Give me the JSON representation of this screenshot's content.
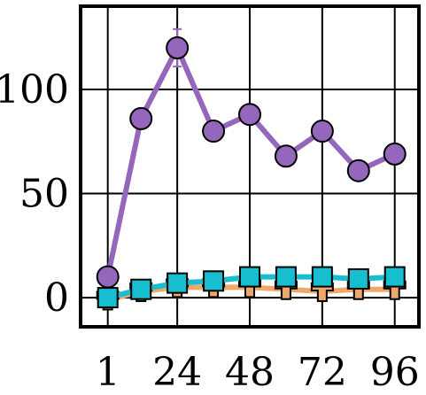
{
  "chart_data": {
    "type": "line",
    "title": "",
    "xlabel": "",
    "ylabel": "",
    "x": [
      1,
      12,
      24,
      36,
      48,
      60,
      72,
      84,
      96
    ],
    "xticks": [
      1,
      24,
      48,
      72,
      96
    ],
    "yticks": [
      0,
      50,
      100
    ],
    "xlim": [
      -8,
      104
    ],
    "ylim": [
      -14,
      140
    ],
    "grid": true,
    "legend": "none",
    "series": [
      {
        "marker": "circle",
        "color": "#9467bd",
        "values": [
          10,
          86,
          120,
          80,
          88,
          68,
          80,
          61,
          69
        ],
        "err": [
          0,
          0,
          9,
          0,
          0,
          0,
          0,
          0,
          0
        ]
      },
      {
        "marker": "t-shape",
        "color": "#f0a868",
        "values": [
          -1,
          3,
          5,
          5,
          5,
          4,
          3,
          4,
          4
        ],
        "err": [
          0,
          0,
          0,
          0,
          0,
          0,
          0,
          0,
          0
        ]
      },
      {
        "marker": "square",
        "color": "#17becf",
        "values": [
          0,
          4,
          7,
          8,
          10,
          10,
          10,
          9,
          10
        ],
        "err": [
          0,
          0,
          0,
          0,
          0,
          0,
          0,
          0,
          0
        ]
      }
    ]
  }
}
